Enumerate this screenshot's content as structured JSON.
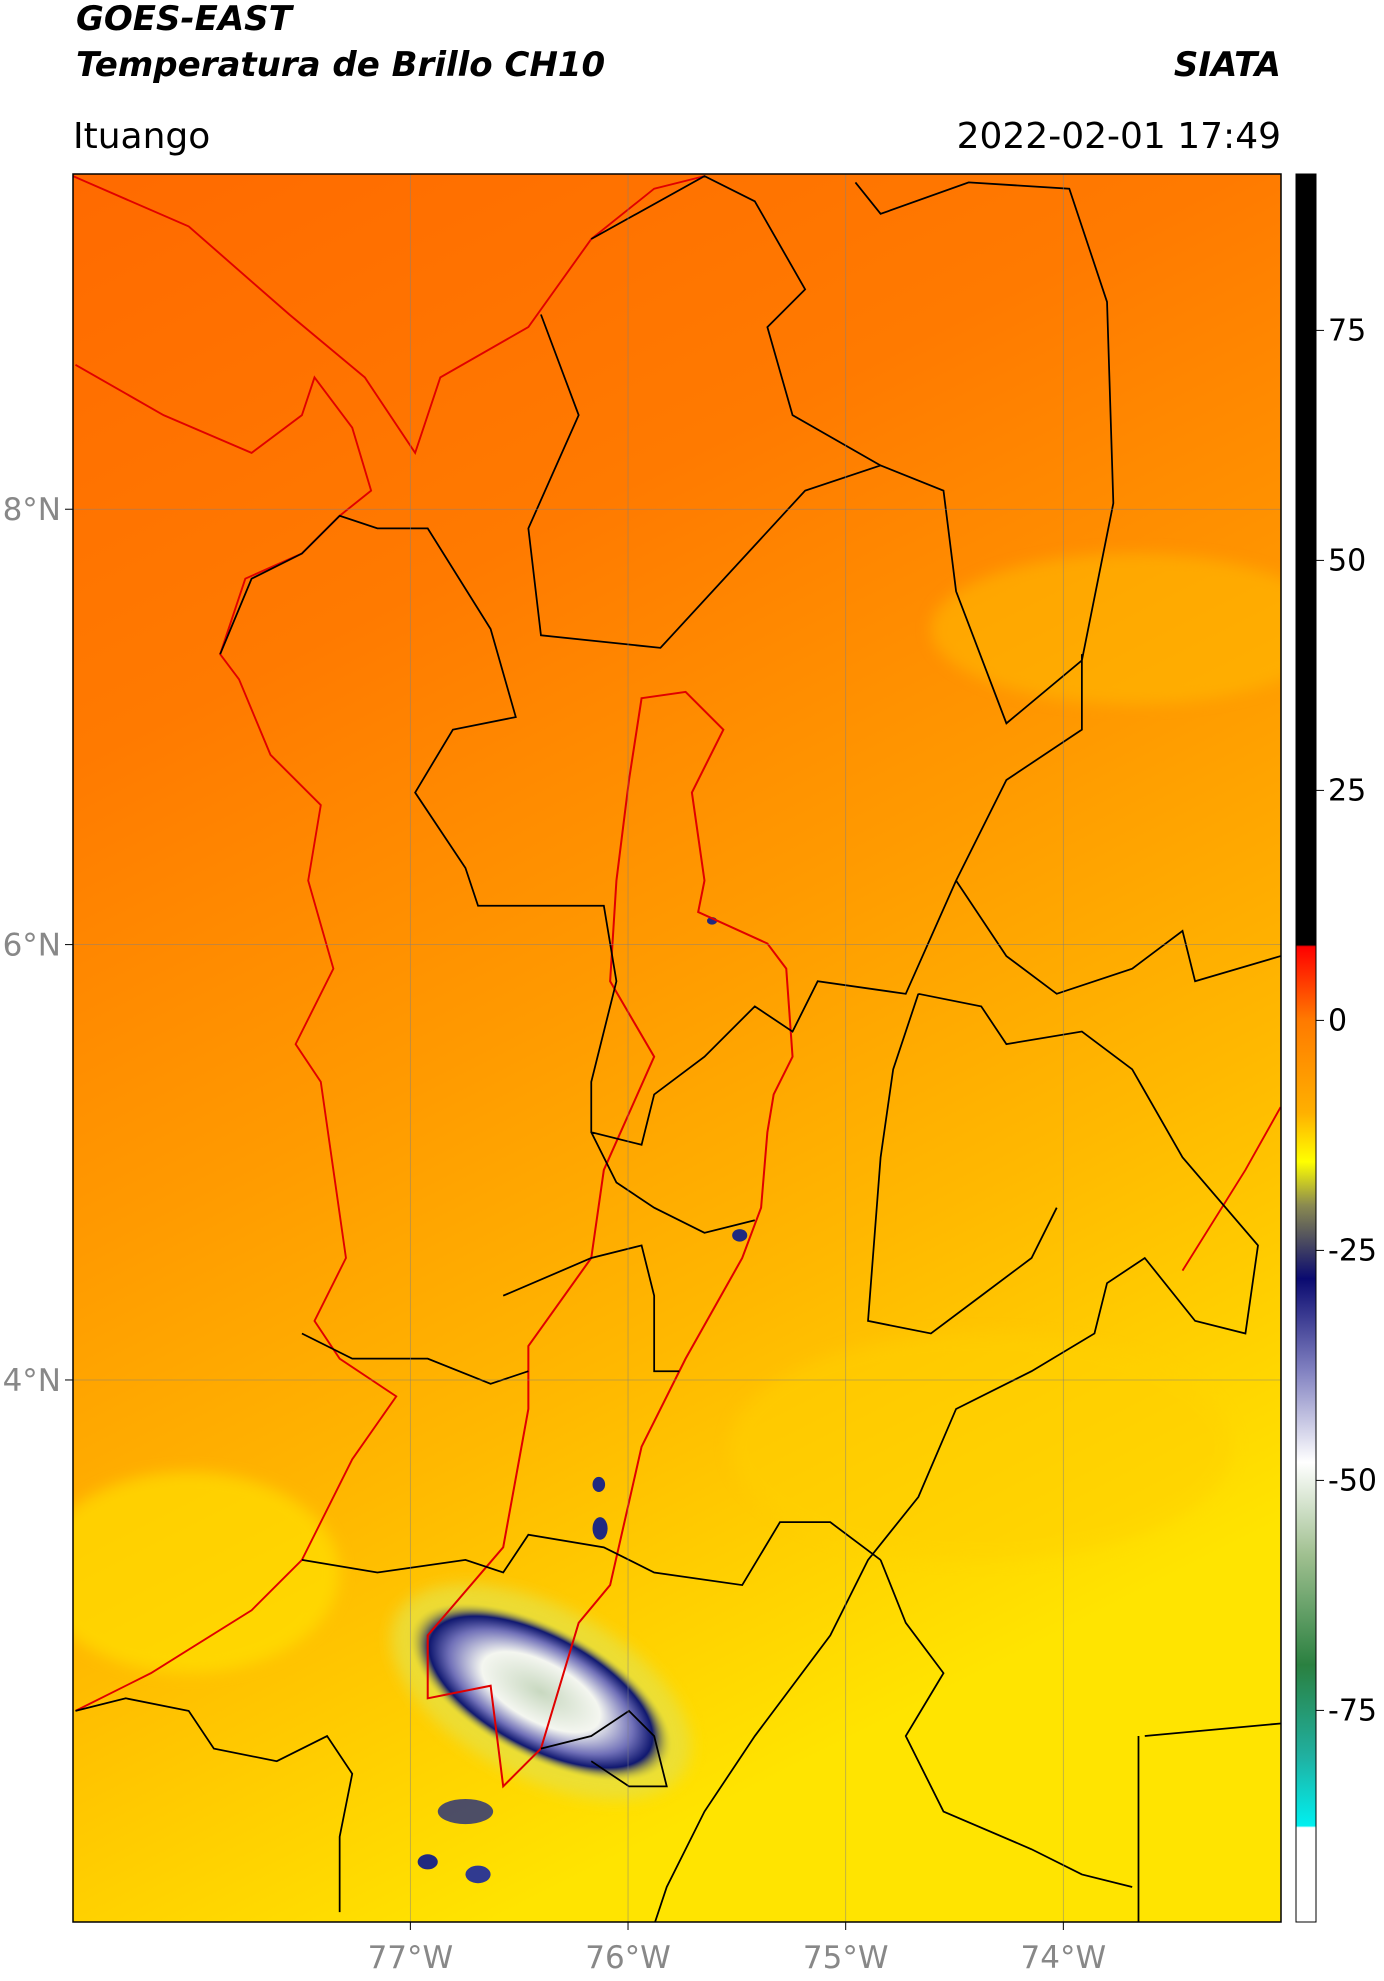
{
  "header": {
    "title_line1": "GOES-EAST",
    "title_line2": "Temperatura de Brillo CH10",
    "source": "SIATA",
    "location": "Ituango",
    "datetime": "2022-02-01 17:49"
  },
  "map": {
    "xlim": [
      -78.55,
      -73.0
    ],
    "ylim": [
      1.51,
      9.54
    ],
    "xticks": [
      {
        "value": -77,
        "label": "77°W"
      },
      {
        "value": -76,
        "label": "76°W"
      },
      {
        "value": -75,
        "label": "75°W"
      },
      {
        "value": -74,
        "label": "74°W"
      }
    ],
    "yticks": [
      {
        "value": 4,
        "label": "4°N"
      },
      {
        "value": 6,
        "label": "6°N"
      },
      {
        "value": 8,
        "label": "8°N"
      }
    ]
  },
  "colorbar": {
    "ylim": [
      -98,
      92
    ],
    "yticks": [
      -75,
      -50,
      -25,
      0,
      25,
      50,
      75
    ]
  }
}
